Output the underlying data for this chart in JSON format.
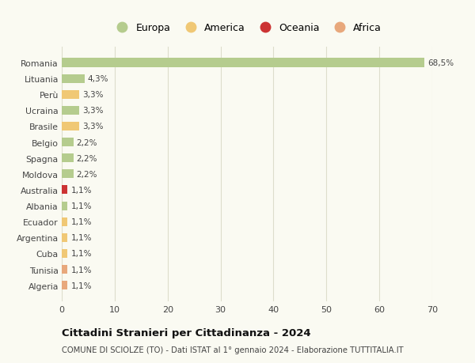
{
  "countries": [
    "Romania",
    "Lituania",
    "Perù",
    "Ucraina",
    "Brasile",
    "Belgio",
    "Spagna",
    "Moldova",
    "Australia",
    "Albania",
    "Ecuador",
    "Argentina",
    "Cuba",
    "Tunisia",
    "Algeria"
  ],
  "values": [
    68.5,
    4.3,
    3.3,
    3.3,
    3.3,
    2.2,
    2.2,
    2.2,
    1.1,
    1.1,
    1.1,
    1.1,
    1.1,
    1.1,
    1.1
  ],
  "labels": [
    "68,5%",
    "4,3%",
    "3,3%",
    "3,3%",
    "3,3%",
    "2,2%",
    "2,2%",
    "2,2%",
    "1,1%",
    "1,1%",
    "1,1%",
    "1,1%",
    "1,1%",
    "1,1%",
    "1,1%"
  ],
  "continents": [
    "Europa",
    "Europa",
    "America",
    "Europa",
    "America",
    "Europa",
    "Europa",
    "Europa",
    "Oceania",
    "Europa",
    "America",
    "America",
    "America",
    "Africa",
    "Africa"
  ],
  "colors": {
    "Europa": "#b5cc8e",
    "America": "#f0c875",
    "Oceania": "#cc3333",
    "Africa": "#e8a87c"
  },
  "xlim": [
    0,
    70
  ],
  "xticks": [
    0,
    10,
    20,
    30,
    40,
    50,
    60,
    70
  ],
  "title": "Cittadini Stranieri per Cittadinanza - 2024",
  "subtitle": "COMUNE DI SCIOLZE (TO) - Dati ISTAT al 1° gennaio 2024 - Elaborazione TUTTITALIA.IT",
  "background_color": "#fafaf2",
  "grid_color": "#ddddcc",
  "bar_height": 0.55,
  "legend_entries": [
    "Europa",
    "America",
    "Oceania",
    "Africa"
  ]
}
